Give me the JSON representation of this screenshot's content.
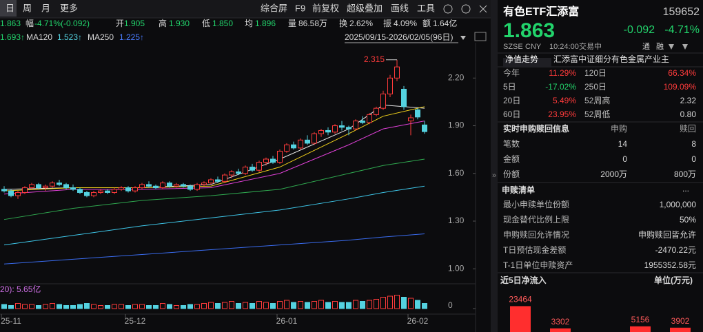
{
  "toolbar": {
    "tabs": [
      "日",
      "周",
      "月",
      "更多"
    ],
    "tools": [
      "综合屏",
      "F9",
      "前复权",
      "超级叠加",
      "画线",
      "工具"
    ]
  },
  "quote": {
    "last": "1.863",
    "items": [
      [
        "幅",
        "-4.71%(-0.092)"
      ],
      [
        "开",
        "1.905"
      ],
      [
        "高",
        "1.930"
      ],
      [
        "低",
        "1.850"
      ],
      [
        "均",
        "1.896"
      ],
      [
        "量",
        "86.58万"
      ],
      [
        "换",
        "2.62%"
      ],
      [
        "振",
        "4.09%"
      ],
      [
        "额",
        "1.64亿"
      ]
    ]
  },
  "ma_bar": {
    "items": [
      "1.693↑",
      "MA120",
      "1.523↑",
      "MA250",
      "1.225↑"
    ],
    "range": "2025/09/15-2026/02/05(96日)"
  },
  "chart": {
    "type": "candlestick",
    "peak_label": "2.315",
    "ylim": [
      0.91,
      2.47
    ],
    "yticks": [
      {
        "value": 2.2,
        "label": "2.20"
      },
      {
        "value": 1.9,
        "label": "1.90"
      },
      {
        "value": 1.6,
        "label": "1.60"
      },
      {
        "value": 1.3,
        "label": "1.30"
      },
      {
        "value": 1.0,
        "label": "1.00"
      }
    ],
    "categories": [
      null,
      "25-11",
      null,
      null,
      null,
      null,
      null,
      null,
      null,
      null,
      null,
      null,
      null,
      null,
      null,
      null,
      null,
      null,
      null,
      "25-12",
      null,
      null,
      null,
      null,
      null,
      null,
      null,
      null,
      null,
      null,
      null,
      null,
      null,
      null,
      null,
      null,
      null,
      null,
      null,
      null,
      null,
      "26-01",
      null,
      null,
      null,
      null,
      null,
      null,
      null,
      null,
      null,
      null,
      null,
      null,
      null,
      null,
      null,
      null,
      null,
      null,
      "26-02",
      null
    ],
    "candles": [
      [
        1.5,
        1.52,
        1.48,
        1.49
      ],
      [
        1.49,
        1.5,
        1.45,
        1.46
      ],
      [
        1.46,
        1.49,
        1.44,
        1.48
      ],
      [
        1.48,
        1.52,
        1.47,
        1.51
      ],
      [
        1.51,
        1.54,
        1.5,
        1.53
      ],
      [
        1.53,
        1.54,
        1.5,
        1.51
      ],
      [
        1.51,
        1.53,
        1.49,
        1.52
      ],
      [
        1.52,
        1.55,
        1.51,
        1.54
      ],
      [
        1.54,
        1.56,
        1.52,
        1.53
      ],
      [
        1.53,
        1.54,
        1.5,
        1.51
      ],
      [
        1.51,
        1.53,
        1.49,
        1.5
      ],
      [
        1.5,
        1.51,
        1.47,
        1.48
      ],
      [
        1.48,
        1.49,
        1.45,
        1.46
      ],
      [
        1.46,
        1.49,
        1.45,
        1.48
      ],
      [
        1.48,
        1.5,
        1.47,
        1.49
      ],
      [
        1.49,
        1.5,
        1.47,
        1.48
      ],
      [
        1.48,
        1.51,
        1.47,
        1.5
      ],
      [
        1.5,
        1.52,
        1.49,
        1.51
      ],
      [
        1.51,
        1.52,
        1.48,
        1.49
      ],
      [
        1.49,
        1.52,
        1.48,
        1.51
      ],
      [
        1.51,
        1.54,
        1.5,
        1.53
      ],
      [
        1.53,
        1.55,
        1.51,
        1.52
      ],
      [
        1.52,
        1.53,
        1.5,
        1.51
      ],
      [
        1.51,
        1.55,
        1.5,
        1.54
      ],
      [
        1.54,
        1.55,
        1.51,
        1.52
      ],
      [
        1.52,
        1.54,
        1.51,
        1.53
      ],
      [
        1.53,
        1.54,
        1.51,
        1.52
      ],
      [
        1.52,
        1.53,
        1.49,
        1.5
      ],
      [
        1.5,
        1.54,
        1.49,
        1.53
      ],
      [
        1.53,
        1.55,
        1.52,
        1.54
      ],
      [
        1.54,
        1.57,
        1.53,
        1.56
      ],
      [
        1.56,
        1.58,
        1.54,
        1.55
      ],
      [
        1.55,
        1.6,
        1.54,
        1.59
      ],
      [
        1.59,
        1.62,
        1.57,
        1.61
      ],
      [
        1.61,
        1.63,
        1.59,
        1.6
      ],
      [
        1.6,
        1.65,
        1.59,
        1.64
      ],
      [
        1.64,
        1.66,
        1.61,
        1.62
      ],
      [
        1.62,
        1.68,
        1.61,
        1.67
      ],
      [
        1.67,
        1.7,
        1.65,
        1.69
      ],
      [
        1.69,
        1.71,
        1.66,
        1.67
      ],
      [
        1.67,
        1.75,
        1.66,
        1.74
      ],
      [
        1.74,
        1.79,
        1.73,
        1.78
      ],
      [
        1.78,
        1.8,
        1.75,
        1.76
      ],
      [
        1.76,
        1.82,
        1.75,
        1.81
      ],
      [
        1.81,
        1.84,
        1.78,
        1.79
      ],
      [
        1.79,
        1.86,
        1.78,
        1.85
      ],
      [
        1.85,
        1.88,
        1.83,
        1.87
      ],
      [
        1.87,
        1.89,
        1.84,
        1.86
      ],
      [
        1.86,
        1.91,
        1.85,
        1.9
      ],
      [
        1.9,
        1.93,
        1.87,
        1.89
      ],
      [
        1.89,
        1.9,
        1.84,
        1.88
      ],
      [
        1.88,
        1.94,
        1.87,
        1.93
      ],
      [
        1.93,
        1.96,
        1.91,
        1.92
      ],
      [
        1.92,
        1.98,
        1.91,
        1.97
      ],
      [
        1.97,
        2.02,
        1.96,
        2.01
      ],
      [
        2.01,
        2.12,
        2.0,
        2.1
      ],
      [
        2.1,
        2.22,
        2.08,
        2.2
      ],
      [
        2.2,
        2.315,
        2.18,
        2.27
      ],
      [
        2.13,
        2.15,
        2.0,
        2.02
      ],
      [
        1.93,
        1.97,
        1.84,
        1.95
      ],
      [
        2.0,
        2.01,
        1.94,
        1.955
      ],
      [
        1.905,
        1.93,
        1.85,
        1.863
      ]
    ],
    "ma": [
      {
        "color": "#e8e8e8",
        "x": [
          0,
          10,
          20,
          30,
          40,
          50,
          55,
          61
        ],
        "values": [
          1.5,
          1.51,
          1.51,
          1.53,
          1.69,
          1.88,
          2.03,
          2.01
        ]
      },
      {
        "color": "#f2d21b",
        "x": [
          0,
          10,
          20,
          30,
          40,
          50,
          55,
          61
        ],
        "values": [
          1.49,
          1.51,
          1.51,
          1.52,
          1.64,
          1.85,
          1.96,
          2.02
        ]
      },
      {
        "color": "#e040d8",
        "x": [
          0,
          10,
          20,
          30,
          40,
          50,
          55,
          61
        ],
        "values": [
          1.47,
          1.5,
          1.5,
          1.51,
          1.6,
          1.78,
          1.88,
          1.93
        ]
      },
      {
        "color": "#2fa84f",
        "x": [
          0,
          10,
          20,
          30,
          40,
          50,
          55,
          61
        ],
        "values": [
          1.31,
          1.38,
          1.43,
          1.46,
          1.5,
          1.6,
          1.65,
          1.69
        ]
      },
      {
        "color": "#3ec6e8",
        "x": [
          0,
          10,
          20,
          30,
          40,
          50,
          55,
          61
        ],
        "values": [
          1.15,
          1.21,
          1.27,
          1.32,
          1.37,
          1.44,
          1.48,
          1.52
        ]
      },
      {
        "color": "#3a6cf0",
        "x": [
          0,
          10,
          20,
          30,
          40,
          50,
          55,
          61
        ],
        "values": [
          1.03,
          1.06,
          1.09,
          1.12,
          1.15,
          1.18,
          1.2,
          1.22
        ]
      }
    ],
    "volume": {
      "label": "20): 5.65亿",
      "ylim": [
        0,
        20
      ],
      "yticks": [
        0
      ],
      "values": [
        4,
        3,
        5,
        4,
        4,
        3,
        4,
        5,
        4,
        3,
        3,
        4,
        5,
        4,
        3,
        3,
        4,
        4,
        3,
        4,
        4,
        3,
        3,
        5,
        4,
        3,
        3,
        4,
        4,
        5,
        6,
        5,
        6,
        7,
        5,
        6,
        5,
        7,
        6,
        5,
        7,
        8,
        6,
        7,
        6,
        7,
        8,
        6,
        7,
        6,
        6,
        8,
        7,
        8,
        9,
        11,
        12,
        13,
        11,
        10,
        8,
        5
      ]
    }
  },
  "fund": {
    "name": "有色ETF汇添富",
    "code": "159652",
    "price": "1.863",
    "change": "-0.092",
    "pct": "-4.71%",
    "meta": [
      "SZSE",
      "CNY",
      "10:24:00",
      "交易中"
    ],
    "badges": [
      "通",
      "融"
    ]
  },
  "nav_tabs": [
    "净值走势",
    "汇添富中证细分有色金属产业主"
  ],
  "perf": [
    [
      "今年",
      "11.29%",
      "120日",
      "66.34%"
    ],
    [
      "5日",
      "-17.02%",
      "250日",
      "109.09%"
    ],
    [
      "20日",
      "5.49%",
      "52周高",
      "2.32"
    ],
    [
      "60日",
      "23.95%",
      "52周低",
      "0.80"
    ]
  ],
  "subscription": {
    "title": "实时申购赎回信息",
    "cols": [
      "申购",
      "赎回"
    ],
    "rows": [
      [
        "笔数",
        "14",
        "8"
      ],
      [
        "金额",
        "0",
        "0"
      ],
      [
        "份额",
        "2000万",
        "800万"
      ]
    ]
  },
  "list": {
    "title": "申赎清单",
    "more": "...",
    "rows": [
      [
        "最小申赎单位份额",
        "1,000,000"
      ],
      [
        "现金替代比例上限",
        "50%"
      ],
      [
        "申购赎回允许情况",
        "申购赎回皆允许"
      ],
      [
        "T日预估现金差额",
        "-2470.22元"
      ],
      [
        "T-1日单位申赎资产",
        "1955352.58元"
      ]
    ]
  },
  "flow": {
    "type": "bar",
    "title": "近5日净流入",
    "unit": "单位(万元)",
    "color": "#ff2e2e",
    "ylim": [
      0,
      25000
    ],
    "values": [
      23464,
      3302,
      null,
      5156,
      3902
    ]
  }
}
